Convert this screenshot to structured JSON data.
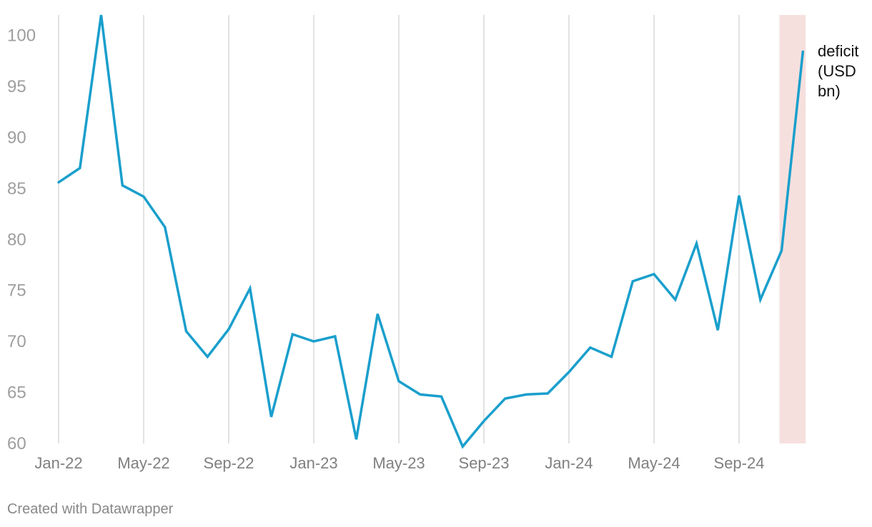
{
  "chart_data": {
    "type": "line",
    "x": [
      "Jan-22",
      "Feb-22",
      "Mar-22",
      "Apr-22",
      "May-22",
      "Jun-22",
      "Jul-22",
      "Aug-22",
      "Sep-22",
      "Oct-22",
      "Nov-22",
      "Dec-22",
      "Jan-23",
      "Feb-23",
      "Mar-23",
      "Apr-23",
      "May-23",
      "Jun-23",
      "Jul-23",
      "Aug-23",
      "Sep-23",
      "Oct-23",
      "Nov-23",
      "Dec-23",
      "Jan-24",
      "Feb-24",
      "Mar-24",
      "Apr-24",
      "May-24",
      "Jun-24",
      "Jul-24",
      "Aug-24",
      "Sep-24",
      "Oct-24",
      "Nov-24",
      "Dec-24"
    ],
    "series": [
      {
        "name": "deficit (USD bn)",
        "color": "#1a9fcc",
        "values": [
          85.6,
          87.0,
          102.0,
          85.3,
          84.2,
          81.2,
          71.0,
          68.5,
          71.2,
          75.2,
          62.6,
          70.7,
          70.0,
          70.5,
          60.4,
          72.7,
          66.1,
          64.8,
          64.6,
          59.7,
          62.2,
          64.4,
          64.8,
          64.9,
          67.0,
          69.4,
          68.5,
          75.9,
          76.6,
          74.1,
          79.6,
          71.1,
          84.3,
          74.1,
          78.9,
          98.4
        ]
      }
    ],
    "series_label_lines": [
      "deficit",
      "(USD",
      "bn)"
    ],
    "xticks": [
      "Jan-22",
      "May-22",
      "Sep-22",
      "Jan-23",
      "May-23",
      "Sep-23",
      "Jan-24",
      "May-24",
      "Sep-24"
    ],
    "yticks": [
      60,
      65,
      70,
      75,
      80,
      85,
      90,
      95,
      100
    ],
    "ylim": [
      60,
      102
    ],
    "highlight": {
      "from": "Nov-24",
      "to": "Dec-24",
      "color": "#f6e0de"
    },
    "grid": "vertical",
    "title": "",
    "xlabel": "",
    "ylabel": ""
  },
  "footer": {
    "credit": "Created with Datawrapper"
  }
}
